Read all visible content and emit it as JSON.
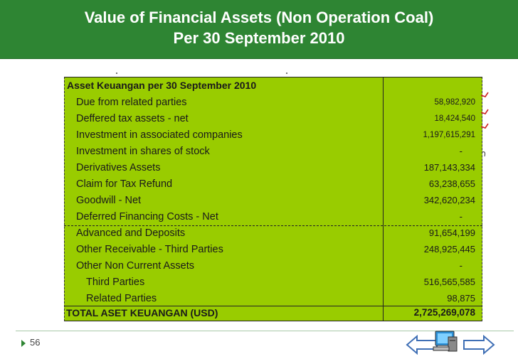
{
  "title": {
    "line1": "Value of Financial Assets (Non Operation Coal)",
    "line2": "Per 30 September 2010"
  },
  "table": {
    "header": "Asset Keuangan per 30 September 2010",
    "rows": [
      {
        "label": "Due from related parties",
        "value": "58,982,920"
      },
      {
        "label": "Deffered tax assets - net",
        "value": "18,424,540"
      },
      {
        "label": "Investment in associated companies",
        "value": "1,197,615,291"
      },
      {
        "label": "Investment in shares of stock",
        "value": "-"
      },
      {
        "label": "Derivatives Assets",
        "value": "187,143,334"
      },
      {
        "label": "Claim for Tax Refund",
        "value": "63,238,655"
      },
      {
        "label": "Goodwill - Net",
        "value": "342,620,234"
      },
      {
        "label": "Deferred Financing Costs - Net",
        "value": "-"
      },
      {
        "label": "Advanced and Deposits",
        "value": "91,654,199"
      },
      {
        "label": "Other Receivable - Third Parties",
        "value": "248,925,445"
      },
      {
        "label": "Other Non Current Assets",
        "value": "-"
      },
      {
        "label": "Third Parties",
        "value": "516,565,585"
      },
      {
        "label": "Related Parties",
        "value": "98,875"
      }
    ],
    "total": {
      "label": "TOTAL ASET KEUANGAN (USD)",
      "value": "2,725,269,078"
    }
  },
  "footer": {
    "slide_number": "56",
    "nav": {
      "prev_icon": "left-arrow-icon",
      "home_icon": "computer-icon",
      "next_icon": "right-arrow-icon"
    }
  },
  "colors": {
    "title_bg": "#2e8533",
    "table_bg": "#99cc00",
    "mark_color": "#cc2222",
    "nav_blue": "#3f6fb5"
  }
}
